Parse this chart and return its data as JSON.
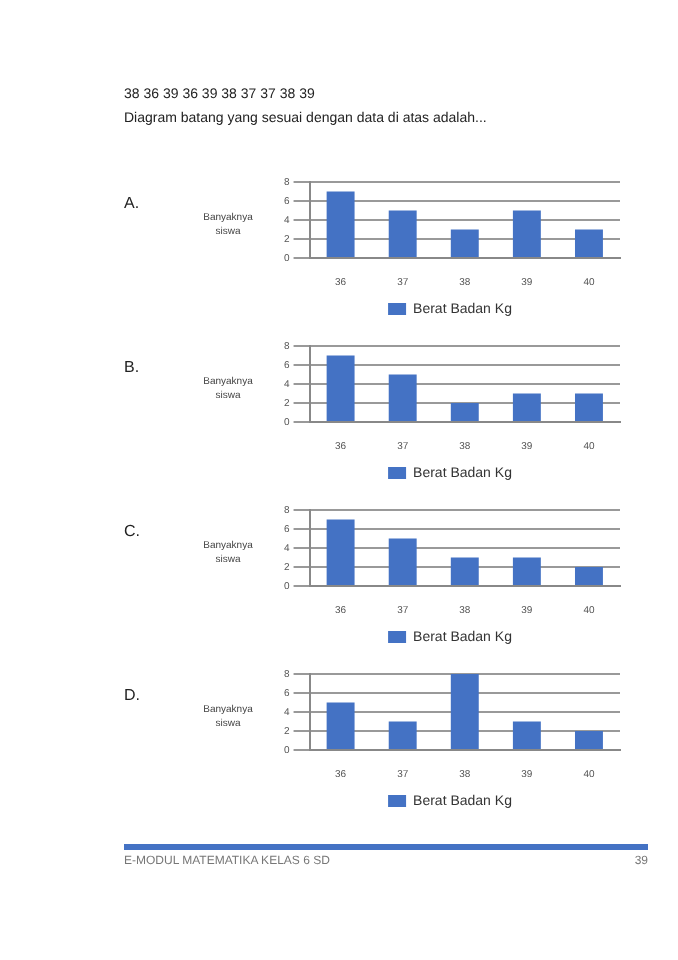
{
  "chart_data": [
    {
      "type": "bar",
      "ylabel": "Banyaknya siswa",
      "categories": [
        "36",
        "37",
        "38",
        "39",
        "40"
      ],
      "series": [
        {
          "name": "Berat Badan Kg",
          "color": "#4472c4",
          "values": [
            7,
            5,
            3,
            5,
            3
          ]
        }
      ],
      "ylim": [
        0,
        8
      ],
      "yticks": [
        0,
        2,
        4,
        6,
        8
      ],
      "grid": "y",
      "legend": "bottom",
      "annotations": [
        "A.",
        "38   36   39   36   39   38   37   37   38   39",
        "Diagram batang yang sesuai dengan data di atas adalah..."
      ]
    },
    {
      "type": "bar",
      "ylabel": "Banyaknya siswa",
      "categories": [
        "36",
        "37",
        "38",
        "39",
        "40"
      ],
      "series": [
        {
          "name": "Berat Badan Kg",
          "color": "#4472c4",
          "values": [
            7,
            5,
            2,
            3,
            3
          ]
        }
      ],
      "ylim": [
        0,
        8
      ],
      "yticks": [
        0,
        2,
        4,
        6,
        8
      ],
      "grid": "y",
      "legend": "bottom",
      "annotations": [
        "B."
      ]
    },
    {
      "type": "bar",
      "ylabel": "Banyaknya siswa",
      "categories": [
        "36",
        "37",
        "38",
        "39",
        "40"
      ],
      "series": [
        {
          "name": "Berat Badan Kg",
          "color": "#4472c4",
          "values": [
            7,
            5,
            3,
            3,
            2
          ]
        }
      ],
      "ylim": [
        0,
        8
      ],
      "yticks": [
        0,
        2,
        4,
        6,
        8
      ],
      "grid": "y",
      "legend": "bottom",
      "annotations": [
        "C."
      ]
    },
    {
      "type": "bar",
      "ylabel": "Banyaknya siswa",
      "categories": [
        "36",
        "37",
        "38",
        "39",
        "40"
      ],
      "series": [
        {
          "name": "Berat Badan Kg",
          "color": "#4472c4",
          "values": [
            5,
            3,
            8,
            3,
            2
          ]
        }
      ],
      "ylim": [
        0,
        8
      ],
      "yticks": [
        0,
        2,
        4,
        6,
        8
      ],
      "grid": "y",
      "legend": "bottom",
      "annotations": [
        "D.",
        "E-MODUL MATEMATIKA KELAS 6 SD",
        "39"
      ]
    }
  ]
}
